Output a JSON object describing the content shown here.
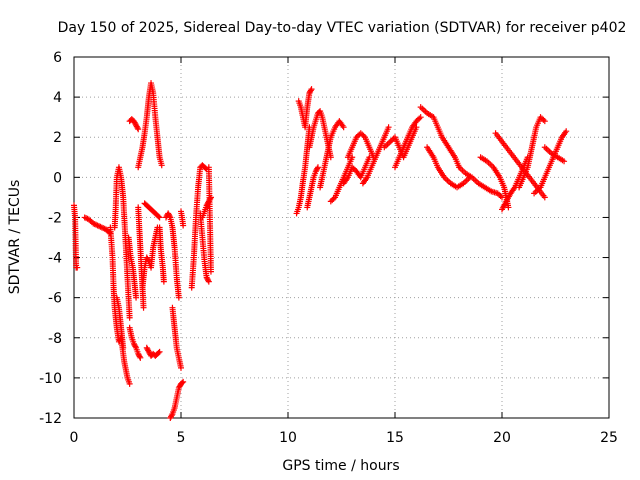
{
  "chart_data": {
    "type": "scatter",
    "title": "Day 150 of 2025, Sidereal Day-to-day VTEC variation (SDTVAR) for receiver p402",
    "xlabel": "GPS time / hours",
    "ylabel": "SDTVAR / TECUs",
    "xlim": [
      0,
      25
    ],
    "ylim": [
      -12,
      6
    ],
    "xticks": [
      0,
      5,
      10,
      15,
      20,
      25
    ],
    "yticks": [
      -12,
      -10,
      -8,
      -6,
      -4,
      -2,
      0,
      2,
      4,
      6
    ],
    "grid": true,
    "marker": "plus",
    "color": "#ff0000",
    "segments": [
      {
        "x": [
          0.0,
          0.05,
          0.1,
          0.15
        ],
        "y": [
          -1.4,
          -2.0,
          -4.5,
          -4.5
        ]
      },
      {
        "x": [
          0.5,
          0.7,
          0.9,
          1.1,
          1.3,
          1.5,
          1.6,
          1.7
        ],
        "y": [
          -2.0,
          -2.1,
          -2.3,
          -2.4,
          -2.5,
          -2.6,
          -2.7,
          -2.8
        ]
      },
      {
        "x": [
          1.7,
          1.8,
          1.85,
          1.9,
          2.0,
          2.1,
          2.2,
          2.35,
          2.5,
          2.6
        ],
        "y": [
          -2.5,
          -4.0,
          -5.5,
          -6.5,
          -7.5,
          -8.2,
          -8.0,
          -9.2,
          -10.0,
          -10.3
        ]
      },
      {
        "x": [
          2.6,
          2.5,
          2.4,
          2.3,
          2.2,
          2.1,
          2.0,
          1.95,
          1.9
        ],
        "y": [
          -7.0,
          -5.0,
          -3.0,
          -1.0,
          0.0,
          0.5,
          0.0,
          -1.5,
          -2.5
        ]
      },
      {
        "x": [
          2.0,
          2.1,
          2.2,
          2.3
        ],
        "y": [
          -6.0,
          -6.5,
          -7.5,
          -8.5
        ]
      },
      {
        "x": [
          2.6,
          2.7,
          2.8,
          2.9,
          3.0,
          3.1
        ],
        "y": [
          -7.5,
          -8.0,
          -8.3,
          -8.5,
          -8.8,
          -9.0
        ]
      },
      {
        "x": [
          2.55,
          2.65,
          2.75,
          2.8,
          2.85,
          2.9
        ],
        "y": [
          -3.0,
          -4.0,
          -4.5,
          -5.0,
          -5.5,
          -6.0
        ]
      },
      {
        "x": [
          2.6,
          2.7,
          2.8,
          2.9,
          3.0
        ],
        "y": [
          2.8,
          2.9,
          2.8,
          2.6,
          2.4
        ]
      },
      {
        "x": [
          3.0,
          3.1,
          3.2,
          3.3,
          3.4,
          3.5,
          3.6,
          3.7,
          3.8,
          3.9,
          4.0,
          4.1
        ],
        "y": [
          0.5,
          1.0,
          1.5,
          2.2,
          3.0,
          4.0,
          4.7,
          4.2,
          3.0,
          2.0,
          1.0,
          0.6
        ]
      },
      {
        "x": [
          3.0,
          3.05,
          3.1,
          3.15,
          3.2,
          3.25
        ],
        "y": [
          -1.5,
          -2.5,
          -3.5,
          -4.5,
          -5.5,
          -6.5
        ]
      },
      {
        "x": [
          3.3,
          3.4,
          3.5,
          3.6,
          3.7,
          3.8,
          3.9,
          4.0
        ],
        "y": [
          -1.3,
          -1.4,
          -1.5,
          -1.6,
          -1.7,
          -1.8,
          -1.9,
          -2.0
        ]
      },
      {
        "x": [
          3.2,
          3.3,
          3.4,
          3.5,
          3.6,
          3.7,
          3.8,
          3.9
        ],
        "y": [
          -5.5,
          -4.5,
          -4.0,
          -4.2,
          -4.5,
          -3.5,
          -3.0,
          -2.5
        ]
      },
      {
        "x": [
          3.4,
          3.5,
          3.6,
          3.7,
          3.8,
          3.9,
          4.0
        ],
        "y": [
          -8.5,
          -8.7,
          -8.9,
          -8.8,
          -8.9,
          -8.8,
          -8.7
        ]
      },
      {
        "x": [
          4.0,
          4.05,
          4.1,
          4.15,
          4.2
        ],
        "y": [
          -2.5,
          -3.5,
          -4.0,
          -4.5,
          -5.2
        ]
      },
      {
        "x": [
          4.3,
          4.4,
          4.5,
          4.6,
          4.7,
          4.8,
          4.9
        ],
        "y": [
          -2.0,
          -1.8,
          -2.0,
          -2.5,
          -3.5,
          -5.0,
          -6.0
        ]
      },
      {
        "x": [
          4.6,
          4.7,
          4.8,
          4.9,
          5.0
        ],
        "y": [
          -6.5,
          -7.5,
          -8.5,
          -9.0,
          -9.5
        ]
      },
      {
        "x": [
          4.5,
          4.6,
          4.7,
          4.8,
          4.9,
          5.0,
          5.1
        ],
        "y": [
          -12.0,
          -11.8,
          -11.5,
          -11.0,
          -10.5,
          -10.3,
          -10.2
        ]
      },
      {
        "x": [
          5.0,
          5.05,
          5.1
        ],
        "y": [
          -1.7,
          -2.0,
          -2.4
        ]
      },
      {
        "x": [
          5.5,
          5.6,
          5.7,
          5.8,
          5.9,
          6.0,
          6.1,
          6.2
        ],
        "y": [
          -5.5,
          -4.0,
          -2.0,
          -0.5,
          0.5,
          0.6,
          0.5,
          0.4
        ]
      },
      {
        "x": [
          5.9,
          6.0,
          6.1,
          6.2,
          6.3
        ],
        "y": [
          -1.8,
          -3.0,
          -4.2,
          -5.0,
          -5.2
        ]
      },
      {
        "x": [
          6.0,
          6.1,
          6.2,
          6.3,
          6.4
        ],
        "y": [
          -2.0,
          -1.7,
          -1.4,
          -1.2,
          -1.0
        ]
      },
      {
        "x": [
          6.3,
          6.4
        ],
        "y": [
          0.5,
          -4.7
        ]
      },
      {
        "x": [
          10.4,
          10.5,
          10.6,
          10.7,
          10.8,
          10.9,
          11.0
        ],
        "y": [
          -1.8,
          -1.5,
          -1.0,
          -0.2,
          0.5,
          1.5,
          2.5
        ]
      },
      {
        "x": [
          10.5,
          10.6,
          10.7,
          10.8,
          10.9,
          11.0,
          11.1
        ],
        "y": [
          3.8,
          3.5,
          3.0,
          2.5,
          3.5,
          4.2,
          4.4
        ]
      },
      {
        "x": [
          10.9,
          11.0,
          11.1,
          11.2,
          11.3,
          11.4
        ],
        "y": [
          -1.5,
          -1.0,
          -0.5,
          0.0,
          0.3,
          0.5
        ]
      },
      {
        "x": [
          11.0,
          11.2,
          11.4,
          11.5,
          11.6,
          11.8,
          12.0
        ],
        "y": [
          1.5,
          2.5,
          3.2,
          3.3,
          3.0,
          2.0,
          1.0
        ]
      },
      {
        "x": [
          11.5,
          11.7,
          11.9,
          12.0,
          12.2,
          12.4,
          12.6
        ],
        "y": [
          -0.5,
          0.5,
          1.5,
          2.0,
          2.5,
          2.8,
          2.5
        ]
      },
      {
        "x": [
          12.0,
          12.2,
          12.4,
          12.6,
          12.8,
          13.0
        ],
        "y": [
          -1.2,
          -1.0,
          -0.5,
          0.0,
          0.5,
          1.0
        ]
      },
      {
        "x": [
          12.8,
          13.0,
          13.2,
          13.4,
          13.6,
          13.8,
          14.0
        ],
        "y": [
          1.0,
          1.5,
          2.0,
          2.2,
          2.0,
          1.5,
          1.0
        ]
      },
      {
        "x": [
          12.6,
          12.8,
          13.0,
          13.2,
          13.4,
          13.6,
          13.8
        ],
        "y": [
          -0.3,
          0.0,
          0.5,
          0.3,
          0.0,
          0.5,
          1.0
        ]
      },
      {
        "x": [
          13.5,
          13.7,
          13.9,
          14.1,
          14.3,
          14.5,
          14.7
        ],
        "y": [
          -0.3,
          0.0,
          0.5,
          1.0,
          1.5,
          2.0,
          2.5
        ]
      },
      {
        "x": [
          14.5,
          14.8,
          15.0,
          15.2,
          15.4,
          15.6,
          15.8,
          16.0
        ],
        "y": [
          1.5,
          1.8,
          2.0,
          1.5,
          1.0,
          1.5,
          2.0,
          2.5
        ]
      },
      {
        "x": [
          15.0,
          15.2,
          15.4,
          15.6,
          15.8,
          16.0,
          16.2
        ],
        "y": [
          0.5,
          1.0,
          1.5,
          2.0,
          2.5,
          2.8,
          3.0
        ]
      },
      {
        "x": [
          16.2,
          16.5,
          16.8,
          17.0,
          17.2,
          17.5,
          17.8,
          18.0
        ],
        "y": [
          3.5,
          3.2,
          3.0,
          2.5,
          2.0,
          1.5,
          1.0,
          0.5
        ]
      },
      {
        "x": [
          16.5,
          16.8,
          17.0,
          17.3,
          17.6,
          17.9,
          18.2,
          18.5
        ],
        "y": [
          1.5,
          1.0,
          0.5,
          0.0,
          -0.3,
          -0.5,
          -0.3,
          0.0
        ]
      },
      {
        "x": [
          18.0,
          18.3,
          18.6,
          18.9,
          19.2,
          19.5,
          19.8,
          20.0
        ],
        "y": [
          0.5,
          0.2,
          0.0,
          -0.3,
          -0.5,
          -0.7,
          -0.8,
          -1.0
        ]
      },
      {
        "x": [
          19.0,
          19.3,
          19.6,
          19.9,
          20.1,
          20.3
        ],
        "y": [
          1.0,
          0.8,
          0.5,
          0.0,
          -0.5,
          -1.5
        ]
      },
      {
        "x": [
          20.0,
          20.2,
          20.4,
          20.6,
          20.8,
          21.0,
          21.2
        ],
        "y": [
          -1.6,
          -1.2,
          -0.8,
          -0.5,
          0.0,
          0.5,
          1.0
        ]
      },
      {
        "x": [
          20.8,
          21.0,
          21.2,
          21.4,
          21.6,
          21.8,
          22.0
        ],
        "y": [
          -0.5,
          0.0,
          0.5,
          1.5,
          2.5,
          3.0,
          2.8
        ]
      },
      {
        "x": [
          21.5,
          21.8,
          22.0,
          22.2,
          22.4,
          22.6,
          22.8,
          23.0
        ],
        "y": [
          -0.8,
          -0.5,
          0.0,
          0.5,
          1.0,
          1.5,
          2.0,
          2.3
        ]
      },
      {
        "x": [
          22.0,
          22.3,
          22.6,
          22.9
        ],
        "y": [
          1.5,
          1.2,
          1.0,
          0.8
        ]
      },
      {
        "x": [
          19.7,
          22.0
        ],
        "y": [
          2.2,
          -1.0
        ]
      }
    ]
  }
}
